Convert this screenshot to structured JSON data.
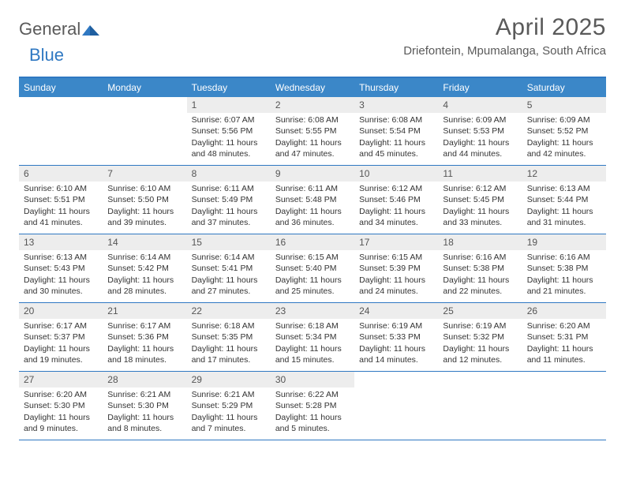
{
  "logo": {
    "part1": "General",
    "part2": "Blue"
  },
  "title": {
    "month": "April 2025",
    "location": "Driefontein, Mpumalanga, South Africa"
  },
  "colors": {
    "header_bar": "#3b87c8",
    "border": "#2f78c2",
    "num_bg": "#ededed",
    "text": "#333333",
    "title_text": "#5a5a5a"
  },
  "day_names": [
    "Sunday",
    "Monday",
    "Tuesday",
    "Wednesday",
    "Thursday",
    "Friday",
    "Saturday"
  ],
  "weeks": [
    [
      {
        "empty": true
      },
      {
        "empty": true
      },
      {
        "num": "1",
        "sunrise": "Sunrise: 6:07 AM",
        "sunset": "Sunset: 5:56 PM",
        "dl1": "Daylight: 11 hours",
        "dl2": "and 48 minutes."
      },
      {
        "num": "2",
        "sunrise": "Sunrise: 6:08 AM",
        "sunset": "Sunset: 5:55 PM",
        "dl1": "Daylight: 11 hours",
        "dl2": "and 47 minutes."
      },
      {
        "num": "3",
        "sunrise": "Sunrise: 6:08 AM",
        "sunset": "Sunset: 5:54 PM",
        "dl1": "Daylight: 11 hours",
        "dl2": "and 45 minutes."
      },
      {
        "num": "4",
        "sunrise": "Sunrise: 6:09 AM",
        "sunset": "Sunset: 5:53 PM",
        "dl1": "Daylight: 11 hours",
        "dl2": "and 44 minutes."
      },
      {
        "num": "5",
        "sunrise": "Sunrise: 6:09 AM",
        "sunset": "Sunset: 5:52 PM",
        "dl1": "Daylight: 11 hours",
        "dl2": "and 42 minutes."
      }
    ],
    [
      {
        "num": "6",
        "sunrise": "Sunrise: 6:10 AM",
        "sunset": "Sunset: 5:51 PM",
        "dl1": "Daylight: 11 hours",
        "dl2": "and 41 minutes."
      },
      {
        "num": "7",
        "sunrise": "Sunrise: 6:10 AM",
        "sunset": "Sunset: 5:50 PM",
        "dl1": "Daylight: 11 hours",
        "dl2": "and 39 minutes."
      },
      {
        "num": "8",
        "sunrise": "Sunrise: 6:11 AM",
        "sunset": "Sunset: 5:49 PM",
        "dl1": "Daylight: 11 hours",
        "dl2": "and 37 minutes."
      },
      {
        "num": "9",
        "sunrise": "Sunrise: 6:11 AM",
        "sunset": "Sunset: 5:48 PM",
        "dl1": "Daylight: 11 hours",
        "dl2": "and 36 minutes."
      },
      {
        "num": "10",
        "sunrise": "Sunrise: 6:12 AM",
        "sunset": "Sunset: 5:46 PM",
        "dl1": "Daylight: 11 hours",
        "dl2": "and 34 minutes."
      },
      {
        "num": "11",
        "sunrise": "Sunrise: 6:12 AM",
        "sunset": "Sunset: 5:45 PM",
        "dl1": "Daylight: 11 hours",
        "dl2": "and 33 minutes."
      },
      {
        "num": "12",
        "sunrise": "Sunrise: 6:13 AM",
        "sunset": "Sunset: 5:44 PM",
        "dl1": "Daylight: 11 hours",
        "dl2": "and 31 minutes."
      }
    ],
    [
      {
        "num": "13",
        "sunrise": "Sunrise: 6:13 AM",
        "sunset": "Sunset: 5:43 PM",
        "dl1": "Daylight: 11 hours",
        "dl2": "and 30 minutes."
      },
      {
        "num": "14",
        "sunrise": "Sunrise: 6:14 AM",
        "sunset": "Sunset: 5:42 PM",
        "dl1": "Daylight: 11 hours",
        "dl2": "and 28 minutes."
      },
      {
        "num": "15",
        "sunrise": "Sunrise: 6:14 AM",
        "sunset": "Sunset: 5:41 PM",
        "dl1": "Daylight: 11 hours",
        "dl2": "and 27 minutes."
      },
      {
        "num": "16",
        "sunrise": "Sunrise: 6:15 AM",
        "sunset": "Sunset: 5:40 PM",
        "dl1": "Daylight: 11 hours",
        "dl2": "and 25 minutes."
      },
      {
        "num": "17",
        "sunrise": "Sunrise: 6:15 AM",
        "sunset": "Sunset: 5:39 PM",
        "dl1": "Daylight: 11 hours",
        "dl2": "and 24 minutes."
      },
      {
        "num": "18",
        "sunrise": "Sunrise: 6:16 AM",
        "sunset": "Sunset: 5:38 PM",
        "dl1": "Daylight: 11 hours",
        "dl2": "and 22 minutes."
      },
      {
        "num": "19",
        "sunrise": "Sunrise: 6:16 AM",
        "sunset": "Sunset: 5:38 PM",
        "dl1": "Daylight: 11 hours",
        "dl2": "and 21 minutes."
      }
    ],
    [
      {
        "num": "20",
        "sunrise": "Sunrise: 6:17 AM",
        "sunset": "Sunset: 5:37 PM",
        "dl1": "Daylight: 11 hours",
        "dl2": "and 19 minutes."
      },
      {
        "num": "21",
        "sunrise": "Sunrise: 6:17 AM",
        "sunset": "Sunset: 5:36 PM",
        "dl1": "Daylight: 11 hours",
        "dl2": "and 18 minutes."
      },
      {
        "num": "22",
        "sunrise": "Sunrise: 6:18 AM",
        "sunset": "Sunset: 5:35 PM",
        "dl1": "Daylight: 11 hours",
        "dl2": "and 17 minutes."
      },
      {
        "num": "23",
        "sunrise": "Sunrise: 6:18 AM",
        "sunset": "Sunset: 5:34 PM",
        "dl1": "Daylight: 11 hours",
        "dl2": "and 15 minutes."
      },
      {
        "num": "24",
        "sunrise": "Sunrise: 6:19 AM",
        "sunset": "Sunset: 5:33 PM",
        "dl1": "Daylight: 11 hours",
        "dl2": "and 14 minutes."
      },
      {
        "num": "25",
        "sunrise": "Sunrise: 6:19 AM",
        "sunset": "Sunset: 5:32 PM",
        "dl1": "Daylight: 11 hours",
        "dl2": "and 12 minutes."
      },
      {
        "num": "26",
        "sunrise": "Sunrise: 6:20 AM",
        "sunset": "Sunset: 5:31 PM",
        "dl1": "Daylight: 11 hours",
        "dl2": "and 11 minutes."
      }
    ],
    [
      {
        "num": "27",
        "sunrise": "Sunrise: 6:20 AM",
        "sunset": "Sunset: 5:30 PM",
        "dl1": "Daylight: 11 hours",
        "dl2": "and 9 minutes."
      },
      {
        "num": "28",
        "sunrise": "Sunrise: 6:21 AM",
        "sunset": "Sunset: 5:30 PM",
        "dl1": "Daylight: 11 hours",
        "dl2": "and 8 minutes."
      },
      {
        "num": "29",
        "sunrise": "Sunrise: 6:21 AM",
        "sunset": "Sunset: 5:29 PM",
        "dl1": "Daylight: 11 hours",
        "dl2": "and 7 minutes."
      },
      {
        "num": "30",
        "sunrise": "Sunrise: 6:22 AM",
        "sunset": "Sunset: 5:28 PM",
        "dl1": "Daylight: 11 hours",
        "dl2": "and 5 minutes."
      },
      {
        "empty": true
      },
      {
        "empty": true
      },
      {
        "empty": true
      }
    ]
  ]
}
